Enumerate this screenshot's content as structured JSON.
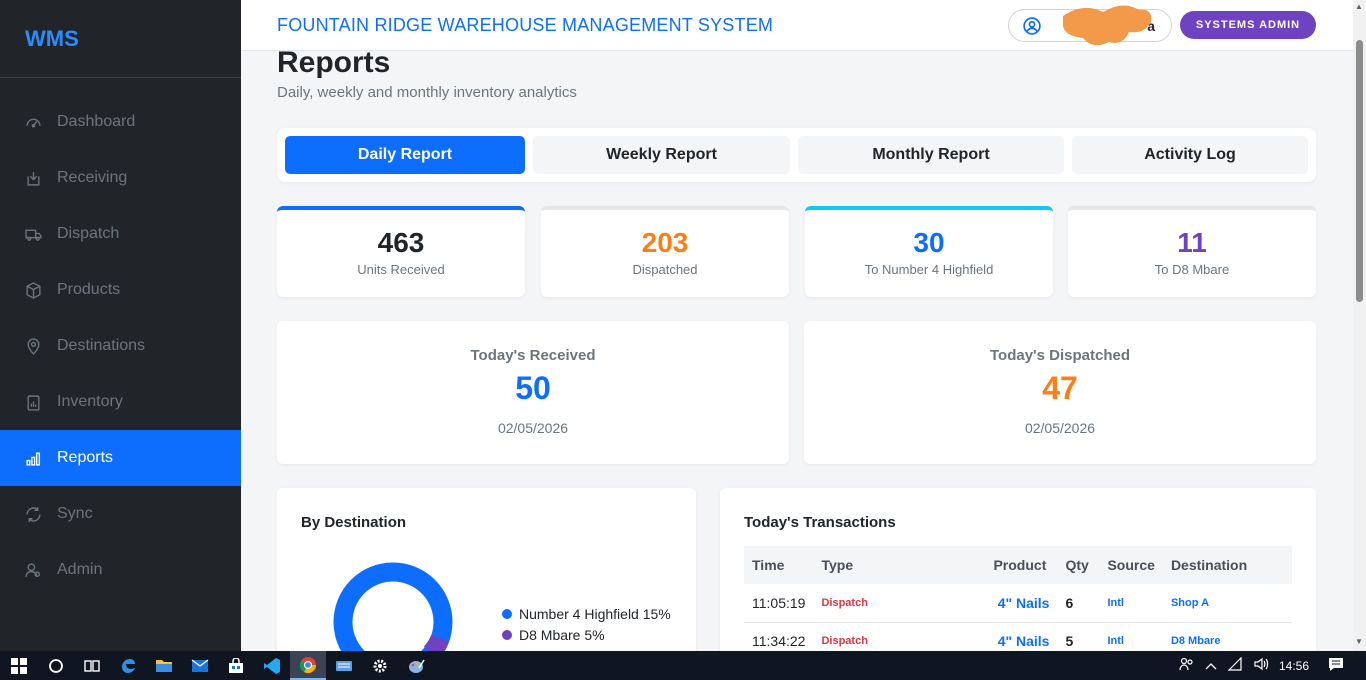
{
  "brand": "WMS",
  "sidebar": {
    "items": [
      {
        "label": "Dashboard",
        "icon": "speedometer-icon",
        "active": false
      },
      {
        "label": "Receiving",
        "icon": "inbox-download-icon",
        "active": false
      },
      {
        "label": "Dispatch",
        "icon": "truck-icon",
        "active": false
      },
      {
        "label": "Products",
        "icon": "box-icon",
        "active": false
      },
      {
        "label": "Destinations",
        "icon": "map-pin-icon",
        "active": false
      },
      {
        "label": "Inventory",
        "icon": "clipboard-data-icon",
        "active": false
      },
      {
        "label": "Reports",
        "icon": "bar-chart-icon",
        "active": true
      },
      {
        "label": "Sync",
        "icon": "sync-icon",
        "active": false
      },
      {
        "label": "Admin",
        "icon": "users-icon",
        "active": false
      }
    ]
  },
  "header": {
    "system_title": "FOUNTAIN RIDGE WAREHOUSE MANAGEMENT SYSTEM",
    "user_name_visible": "a",
    "role_badge": "SYSTEMS ADMIN"
  },
  "page": {
    "title": "Reports",
    "subtitle": "Daily, weekly and monthly inventory analytics"
  },
  "tabs": [
    {
      "label": "Daily Report",
      "active": true
    },
    {
      "label": "Weekly Report",
      "active": false
    },
    {
      "label": "Monthly Report",
      "active": false
    },
    {
      "label": "Activity Log",
      "active": false
    }
  ],
  "stats": [
    {
      "value": "463",
      "label": "Units Received",
      "color": "#212529",
      "accent": "#0d6efd"
    },
    {
      "value": "203",
      "label": "Dispatched",
      "color": "#fd7e14",
      "accent": "#e5e7ea"
    },
    {
      "value": "30",
      "label": "To Number 4 Highfield",
      "color": "#0d6efd",
      "accent": "#0dcaf0"
    },
    {
      "value": "11",
      "label": "To D8 Mbare",
      "color": "#6f42c1",
      "accent": "#e5e7ea"
    }
  ],
  "today": {
    "received": {
      "title": "Today's Received",
      "value": "50",
      "date": "02/05/2026",
      "color": "#0d6efd"
    },
    "dispatched": {
      "title": "Today's Dispatched",
      "value": "47",
      "date": "02/05/2026",
      "color": "#fd7e14"
    }
  },
  "by_destination": {
    "title": "By Destination",
    "legend": [
      {
        "label": "Number 4 Highfield 15%",
        "color": "#0d6efd"
      },
      {
        "label": "D8 Mbare 5%",
        "color": "#6f42c1"
      }
    ]
  },
  "transactions": {
    "title": "Today's Transactions",
    "columns": [
      "Time",
      "Type",
      "Product",
      "Qty",
      "Source",
      "Destination"
    ],
    "rows": [
      {
        "time": "11:05:19",
        "type": "Dispatch",
        "product": "4\" Nails",
        "qty": "6",
        "source": "Intl",
        "destination": "Shop A"
      },
      {
        "time": "11:34:22",
        "type": "Dispatch",
        "product": "4\" Nails",
        "qty": "5",
        "source": "Intl",
        "destination": "D8 Mbare"
      }
    ]
  },
  "taskbar": {
    "clock": "14:56"
  },
  "colors": {
    "primary": "#0d6efd",
    "orange": "#fd7e14",
    "purple": "#6f42c1",
    "sidebar_bg": "#212529"
  }
}
